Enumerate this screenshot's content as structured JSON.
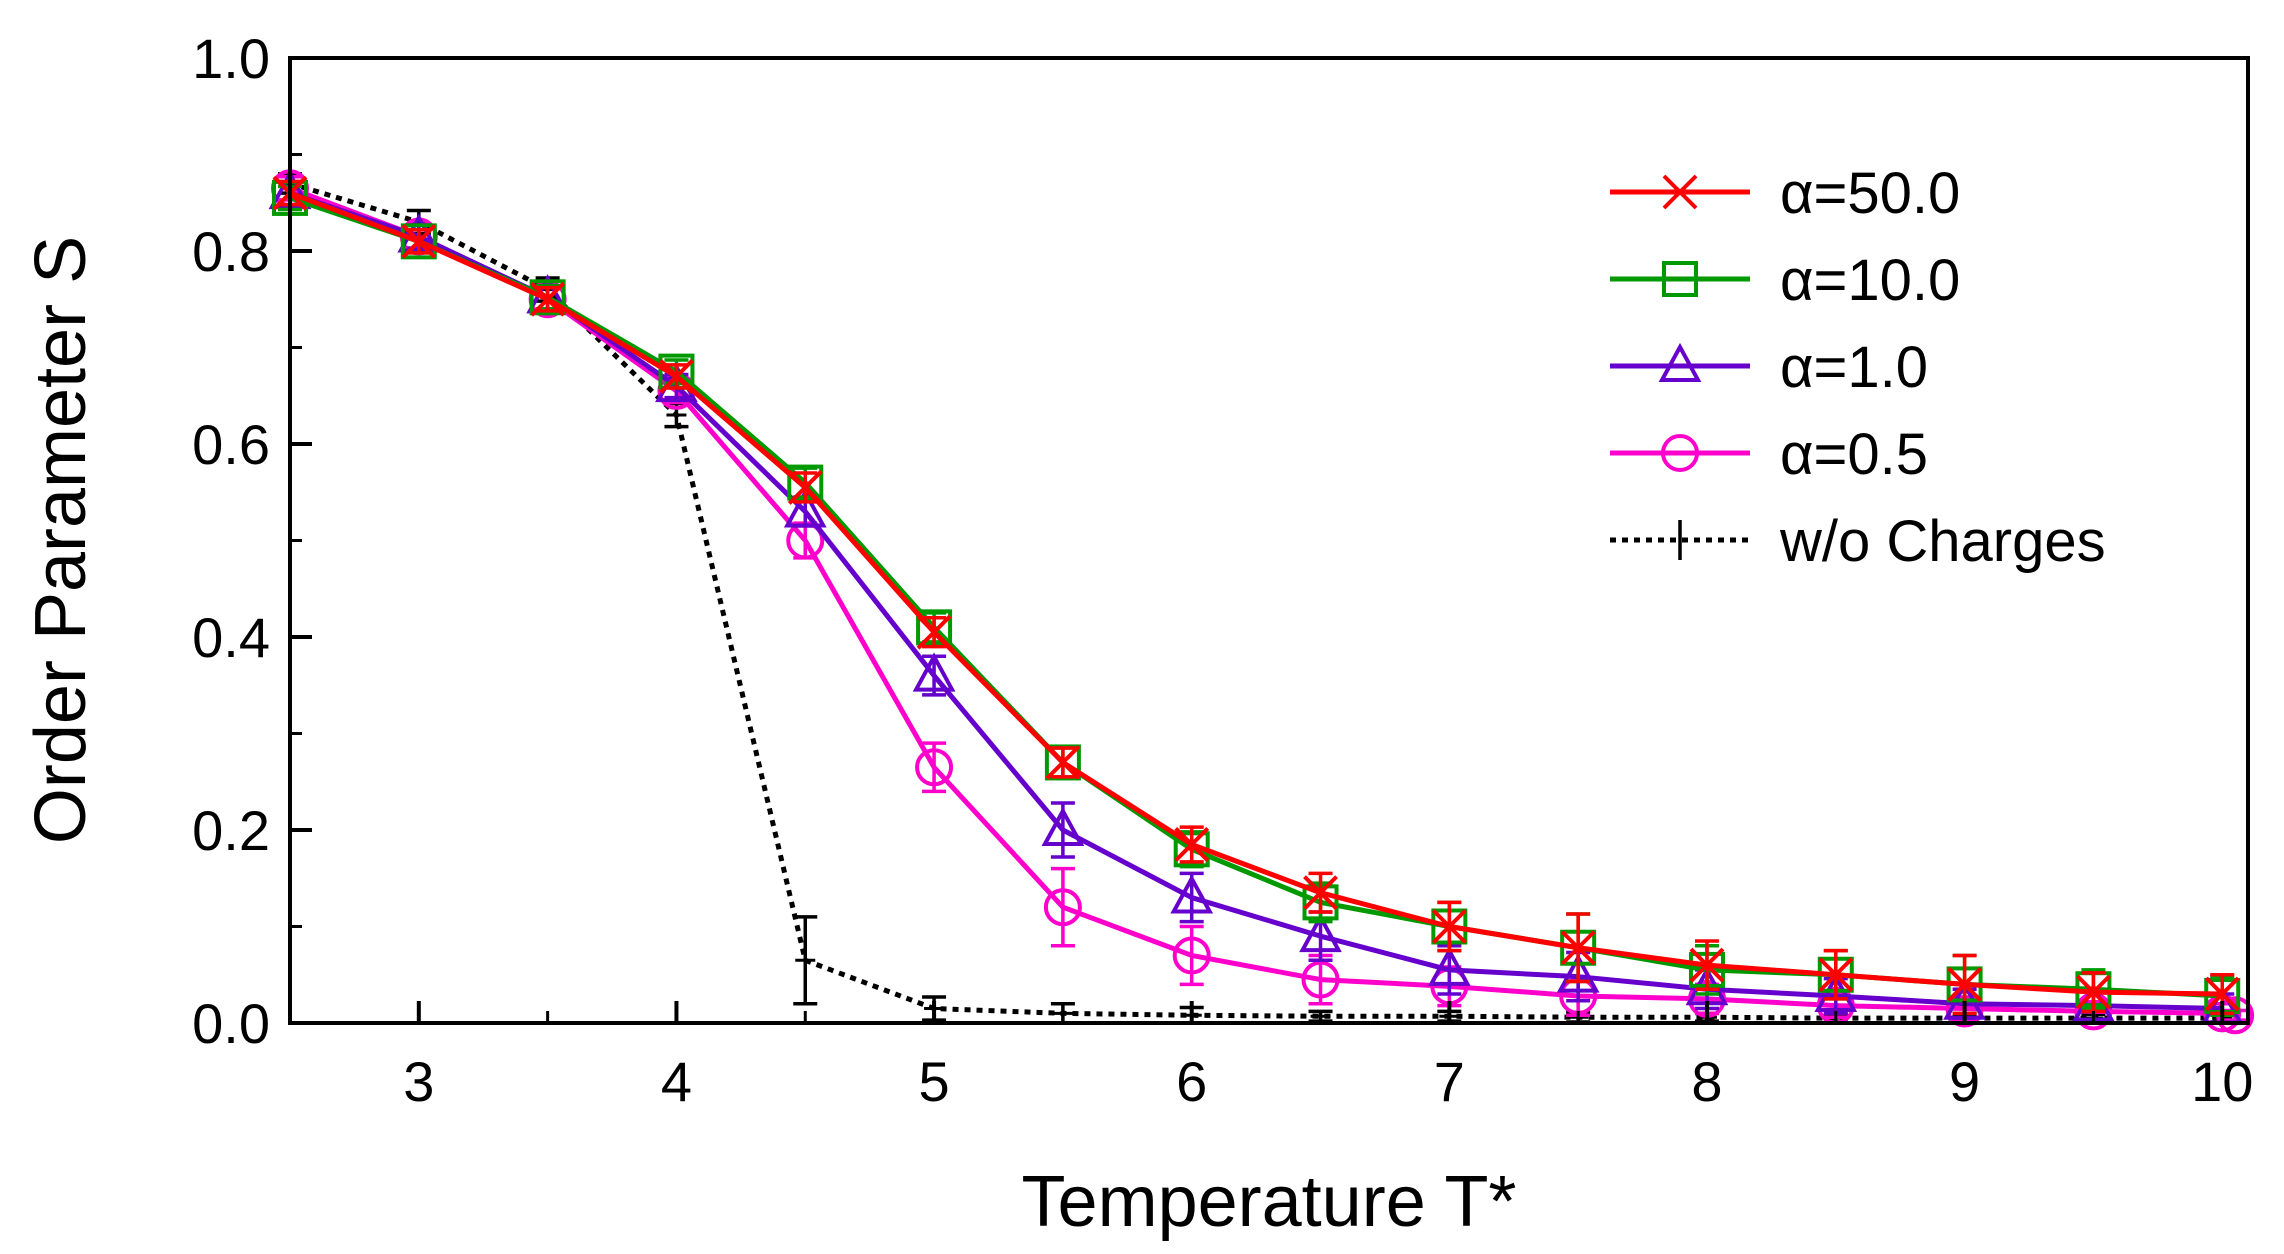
{
  "chart_data": {
    "type": "line",
    "title": "",
    "xlabel": "Temperature T*",
    "ylabel": "Order Parameter S",
    "xlim": [
      2.5,
      10.1
    ],
    "ylim": [
      0.0,
      1.0
    ],
    "xticks": [
      3,
      4,
      5,
      6,
      7,
      8,
      9,
      10
    ],
    "xtick_labels": [
      "3",
      "4",
      "5",
      "6",
      "7",
      "8",
      "9",
      "10"
    ],
    "yticks": [
      0.0,
      0.2,
      0.4,
      0.6,
      0.8,
      1.0
    ],
    "ytick_labels": [
      "0.0",
      "0.2",
      "0.4",
      "0.6",
      "0.8",
      "1.0"
    ],
    "grid": false,
    "legend_position": "top-right",
    "series": [
      {
        "name": "α=50.0",
        "color": "#ff0000",
        "marker": "x",
        "line_style": "solid",
        "x": [
          2.5,
          3.0,
          3.5,
          4.0,
          4.5,
          5.0,
          5.5,
          6.0,
          6.5,
          7.0,
          7.5,
          8.0,
          8.5,
          9.0,
          9.5,
          10.0
        ],
        "y": [
          0.86,
          0.81,
          0.75,
          0.67,
          0.555,
          0.405,
          0.27,
          0.185,
          0.135,
          0.1,
          0.078,
          0.06,
          0.05,
          0.04,
          0.032,
          0.03
        ],
        "err": [
          0.012,
          0.012,
          0.012,
          0.012,
          0.015,
          0.015,
          0.015,
          0.018,
          0.02,
          0.025,
          0.035,
          0.025,
          0.025,
          0.03,
          0.02,
          0.02
        ]
      },
      {
        "name": "α=10.0",
        "color": "#009900",
        "marker": "square",
        "line_style": "solid",
        "x": [
          2.5,
          3.0,
          3.5,
          4.0,
          4.5,
          5.0,
          5.5,
          6.0,
          6.5,
          7.0,
          7.5,
          8.0,
          8.5,
          9.0,
          9.5,
          10.0
        ],
        "y": [
          0.855,
          0.81,
          0.752,
          0.675,
          0.56,
          0.41,
          0.27,
          0.18,
          0.125,
          0.1,
          0.078,
          0.055,
          0.05,
          0.04,
          0.035,
          0.028
        ],
        "err": [
          0.012,
          0.012,
          0.012,
          0.012,
          0.015,
          0.015,
          0.015,
          0.018,
          0.02,
          0.025,
          0.035,
          0.025,
          0.025,
          0.03,
          0.02,
          0.02
        ]
      },
      {
        "name": "α=1.0",
        "color": "#6600cc",
        "marker": "triangle",
        "line_style": "solid",
        "x": [
          2.5,
          3.0,
          3.5,
          4.0,
          4.5,
          5.0,
          5.5,
          6.0,
          6.5,
          7.0,
          7.5,
          8.0,
          8.5,
          9.0,
          9.5,
          10.0
        ],
        "y": [
          0.86,
          0.815,
          0.752,
          0.66,
          0.53,
          0.36,
          0.2,
          0.13,
          0.09,
          0.055,
          0.048,
          0.035,
          0.028,
          0.02,
          0.018,
          0.015
        ],
        "err": [
          0.012,
          0.012,
          0.012,
          0.012,
          0.015,
          0.02,
          0.028,
          0.025,
          0.025,
          0.025,
          0.025,
          0.02,
          0.018,
          0.015,
          0.015,
          0.015
        ]
      },
      {
        "name": "α=0.5",
        "color": "#ff00cc",
        "marker": "circle",
        "line_style": "solid",
        "x": [
          2.5,
          3.0,
          3.5,
          4.0,
          4.5,
          5.0,
          5.5,
          6.0,
          6.5,
          7.0,
          7.5,
          8.0,
          8.5,
          9.0,
          9.5,
          10.0,
          10.05
        ],
        "y": [
          0.865,
          0.815,
          0.75,
          0.655,
          0.5,
          0.265,
          0.12,
          0.07,
          0.045,
          0.038,
          0.028,
          0.025,
          0.018,
          0.015,
          0.012,
          0.01,
          0.008
        ],
        "err": [
          0.012,
          0.012,
          0.012,
          0.012,
          0.018,
          0.025,
          0.04,
          0.03,
          0.025,
          0.02,
          0.02,
          0.015,
          0.012,
          0.012,
          0.01,
          0.01,
          0.005
        ]
      },
      {
        "name": "w/o Charges",
        "color": "#000000",
        "marker": "errbar",
        "line_style": "dotted",
        "x": [
          2.5,
          3.0,
          3.5,
          4.0,
          4.5,
          5.0,
          5.5,
          6.0,
          6.5,
          7.0,
          7.5,
          8.0,
          8.5,
          9.0,
          9.5,
          10.0
        ],
        "y": [
          0.87,
          0.83,
          0.76,
          0.63,
          0.065,
          0.015,
          0.01,
          0.008,
          0.007,
          0.007,
          0.006,
          0.006,
          0.005,
          0.005,
          0.005,
          0.005
        ],
        "err": [
          0.01,
          0.012,
          0.012,
          0.012,
          0.045,
          0.012,
          0.01,
          0.008,
          0.005,
          0.005,
          0.005,
          0.004,
          0.004,
          0.004,
          0.004,
          0.004
        ]
      }
    ]
  }
}
